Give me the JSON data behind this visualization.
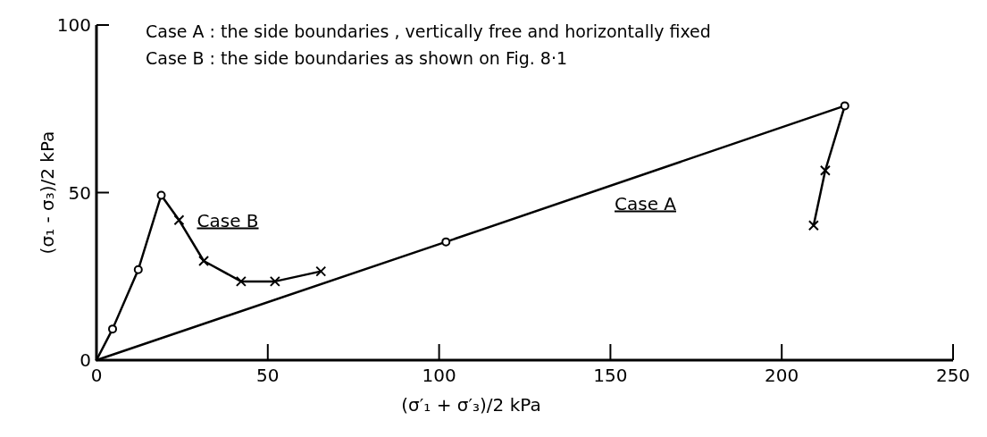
{
  "chart_data": {
    "type": "line",
    "xlabel": "(σ′₁ + σ′₃)/2  kPa",
    "ylabel": "(σ₁ - σ₃)/2  kPa",
    "xlim": [
      0,
      250
    ],
    "ylim": [
      0,
      100
    ],
    "xticks": [
      0,
      50,
      100,
      150,
      200,
      250
    ],
    "yticks": [
      0,
      50,
      100
    ],
    "grid": false,
    "legend": false,
    "annotations": [
      "Case A :  the side boundaries , vertically free  and  horizontally fixed",
      "Case B :  the side boundaries  as shown on Fig. 8·1"
    ],
    "series": [
      {
        "name": "Case B",
        "color": "#000000",
        "marker": "none",
        "x": [
          0,
          4.7,
          12.2,
          18.9,
          24.1,
          31.3,
          42.2,
          52.1,
          65.5
        ],
        "values": [
          0,
          9.3,
          27,
          49.2,
          41.8,
          29.6,
          23.5,
          23.5,
          26.5
        ]
      },
      {
        "name": "Case A",
        "color": "#000000",
        "marker": "none",
        "x": [
          0,
          102,
          218.4,
          212.7,
          209.3
        ],
        "values": [
          0,
          35.3,
          75.9,
          56.6,
          40.2
        ]
      },
      {
        "type": "scatter",
        "color": "#000000",
        "marker": "circle",
        "x": [
          4.7,
          12.2,
          18.9,
          102,
          218.4
        ],
        "values": [
          9.3,
          27,
          49.2,
          35.3,
          75.9
        ]
      },
      {
        "type": "scatter",
        "color": "#000000",
        "marker": "cross",
        "x": [
          24.1,
          31.3,
          42.2,
          52.1,
          65.5,
          212.7,
          209.3
        ],
        "values": [
          41.8,
          29.6,
          23.5,
          23.5,
          26.5,
          56.6,
          40.2
        ]
      }
    ]
  }
}
